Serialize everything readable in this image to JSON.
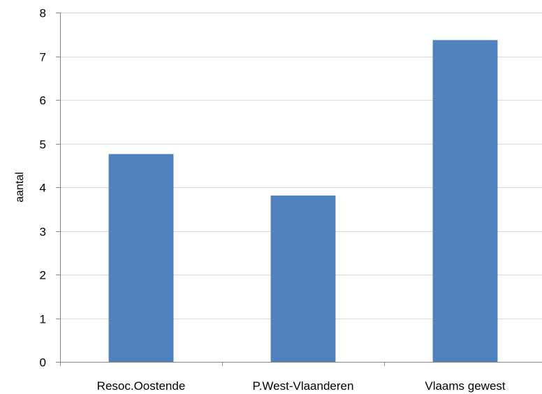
{
  "chart_data": {
    "type": "bar",
    "categories": [
      "Resoc.Oostende",
      "P.West-Vlaanderen",
      "Vlaams gewest"
    ],
    "values": [
      4.76,
      3.81,
      7.37
    ],
    "ylabel": "aantal",
    "xlabel": "",
    "ylim": [
      0,
      8
    ],
    "yticks": [
      0,
      1,
      2,
      3,
      4,
      5,
      6,
      7,
      8
    ],
    "grid": true,
    "legend": "none",
    "bar_color": "#4F81BD",
    "gridline_color": "#D9D9D9"
  }
}
